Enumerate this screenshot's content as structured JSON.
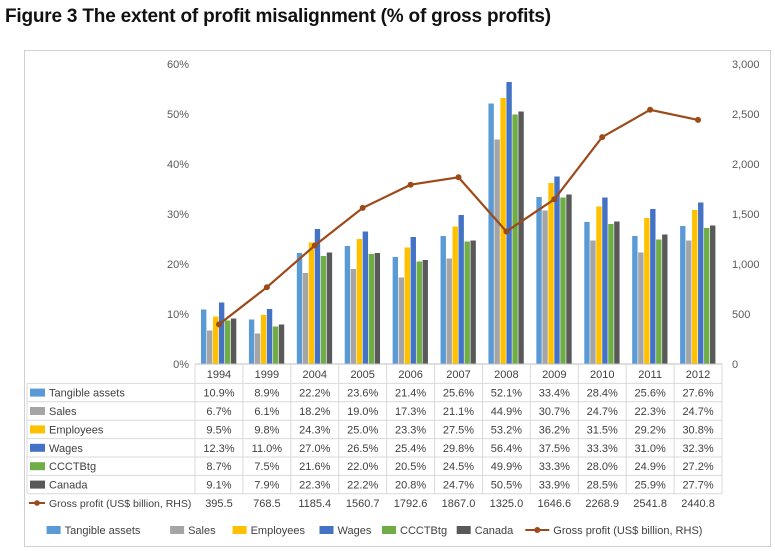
{
  "title": "Figure 3 The extent of profit misalignment (% of gross profits)",
  "chart_data": {
    "type": "bar",
    "categories": [
      "1994",
      "1999",
      "2004",
      "2005",
      "2006",
      "2007",
      "2008",
      "2009",
      "2010",
      "2011",
      "2012"
    ],
    "series": [
      {
        "name": "Tangible assets",
        "color": "#5b9bd5",
        "values": [
          10.9,
          8.9,
          22.2,
          23.6,
          21.4,
          25.6,
          52.1,
          33.4,
          28.4,
          25.6,
          27.6
        ],
        "labels": [
          "10.9%",
          "8.9%",
          "22.2%",
          "23.6%",
          "21.4%",
          "25.6%",
          "52.1%",
          "33.4%",
          "28.4%",
          "25.6%",
          "27.6%"
        ]
      },
      {
        "name": "Sales",
        "color": "#a5a5a5",
        "values": [
          6.7,
          6.1,
          18.2,
          19.0,
          17.3,
          21.1,
          44.9,
          30.7,
          24.7,
          22.3,
          24.7
        ],
        "labels": [
          "6.7%",
          "6.1%",
          "18.2%",
          "19.0%",
          "17.3%",
          "21.1%",
          "44.9%",
          "30.7%",
          "24.7%",
          "22.3%",
          "24.7%"
        ]
      },
      {
        "name": "Employees",
        "color": "#ffc000",
        "values": [
          9.5,
          9.8,
          24.3,
          25.0,
          23.3,
          27.5,
          53.2,
          36.2,
          31.5,
          29.2,
          30.8
        ],
        "labels": [
          "9.5%",
          "9.8%",
          "24.3%",
          "25.0%",
          "23.3%",
          "27.5%",
          "53.2%",
          "36.2%",
          "31.5%",
          "29.2%",
          "30.8%"
        ]
      },
      {
        "name": "Wages",
        "color": "#4472c4",
        "values": [
          12.3,
          11.0,
          27.0,
          26.5,
          25.4,
          29.8,
          56.4,
          37.5,
          33.3,
          31.0,
          32.3
        ],
        "labels": [
          "12.3%",
          "11.0%",
          "27.0%",
          "26.5%",
          "25.4%",
          "29.8%",
          "56.4%",
          "37.5%",
          "33.3%",
          "31.0%",
          "32.3%"
        ]
      },
      {
        "name": "CCCTBtg",
        "color": "#70ad47",
        "values": [
          8.7,
          7.5,
          21.6,
          22.0,
          20.5,
          24.5,
          49.9,
          33.3,
          28.0,
          24.9,
          27.2
        ],
        "labels": [
          "8.7%",
          "7.5%",
          "21.6%",
          "22.0%",
          "20.5%",
          "24.5%",
          "49.9%",
          "33.3%",
          "28.0%",
          "24.9%",
          "27.2%"
        ]
      },
      {
        "name": "Canada",
        "color": "#595959",
        "values": [
          9.1,
          7.9,
          22.3,
          22.2,
          20.8,
          24.7,
          50.5,
          33.9,
          28.5,
          25.9,
          27.7
        ],
        "labels": [
          "9.1%",
          "7.9%",
          "22.3%",
          "22.2%",
          "20.8%",
          "24.7%",
          "50.5%",
          "33.9%",
          "28.5%",
          "25.9%",
          "27.7%"
        ]
      }
    ],
    "line_series": {
      "name": "Gross profit (US$ billion, RHS)",
      "color": "#9c4a1a",
      "axis": "right",
      "values": [
        395.5,
        768.5,
        1185.4,
        1560.7,
        1792.6,
        1867.0,
        1325.0,
        1646.6,
        2268.9,
        2541.8,
        2440.8
      ],
      "labels": [
        "395.5",
        "768.5",
        "1185.4",
        "1560.7",
        "1792.6",
        "1867.0",
        "1325.0",
        "1646.6",
        "2268.9",
        "2541.8",
        "2440.8"
      ]
    },
    "y_left": {
      "min": 0,
      "max": 60,
      "ticks": [
        "0%",
        "10%",
        "20%",
        "30%",
        "40%",
        "50%",
        "60%"
      ]
    },
    "y_right": {
      "min": 0,
      "max": 3000,
      "ticks": [
        "0",
        "500",
        "1,000",
        "1,500",
        "2,000",
        "2,500",
        "3,000"
      ]
    },
    "legend_position": "bottom",
    "data_table": true,
    "grid": false
  }
}
